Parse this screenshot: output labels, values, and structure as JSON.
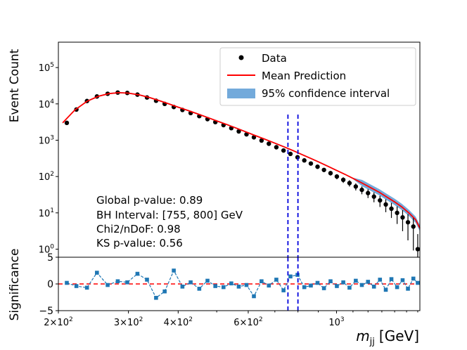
{
  "chart_data": [
    {
      "type": "scatter",
      "panel": "main",
      "ylabel": "Event Count",
      "xscale": "log",
      "yscale": "log",
      "xlim": [
        200,
        1620
      ],
      "ylim": [
        0.6,
        500000
      ],
      "legend_placement": "top-right",
      "legend": [
        "Data",
        "Mean Prediction",
        "95% confidence interval"
      ],
      "y_tick_labels": [
        {
          "value": 1,
          "base": "10",
          "exp": "0"
        },
        {
          "value": 10,
          "base": "10",
          "exp": "1"
        },
        {
          "value": 100,
          "base": "10",
          "exp": "2"
        },
        {
          "value": 1000,
          "base": "10",
          "exp": "3"
        },
        {
          "value": 10000,
          "base": "10",
          "exp": "4"
        },
        {
          "value": 100000,
          "base": "10",
          "exp": "5"
        }
      ],
      "annotations": [
        "Global p-value: 0.89",
        "BH Interval: [755, 800] GeV",
        "Chi2/nDoF: 0.98",
        "KS p-value: 0.56"
      ],
      "interval_lines": [
        755,
        800
      ],
      "series": [
        {
          "name": "Data",
          "marker": "dot",
          "points": [
            [
              210,
              3000
            ],
            [
              222,
              7000
            ],
            [
              236,
              12000
            ],
            [
              250,
              16000
            ],
            [
              266,
              19000
            ],
            [
              282,
              20500
            ],
            [
              298,
              20000
            ],
            [
              316,
              18000
            ],
            [
              334,
              15000
            ],
            [
              352,
              12200
            ],
            [
              370,
              10000
            ],
            [
              390,
              8200
            ],
            [
              410,
              6800
            ],
            [
              430,
              5600
            ],
            [
              452,
              4600
            ],
            [
              474,
              3800
            ],
            [
              496,
              3150
            ],
            [
              520,
              2600
            ],
            [
              544,
              2150
            ],
            [
              568,
              1750
            ],
            [
              594,
              1450
            ],
            [
              620,
              1200
            ],
            [
              648,
              980
            ],
            [
              676,
              800
            ],
            [
              706,
              640
            ],
            [
              736,
              520
            ],
            [
              766,
              420
            ],
            [
              798,
              340
            ],
            [
              830,
              278
            ],
            [
              862,
              228
            ],
            [
              896,
              186
            ],
            [
              930,
              152
            ],
            [
              966,
              124
            ],
            [
              1002,
              100
            ],
            [
              1040,
              81
            ],
            [
              1078,
              66
            ],
            [
              1118,
              53
            ],
            [
              1158,
              43
            ],
            [
              1200,
              35
            ],
            [
              1242,
              28
            ],
            [
              1286,
              22
            ],
            [
              1330,
              17
            ],
            [
              1374,
              13
            ],
            [
              1420,
              10
            ],
            [
              1466,
              7.5
            ],
            [
              1512,
              5.5
            ],
            [
              1560,
              4.2
            ],
            [
              1600,
              1
            ]
          ]
        },
        {
          "name": "Mean Prediction",
          "color": "#ff0000",
          "points": [
            [
              205,
              3000
            ],
            [
              220,
              6800
            ],
            [
              236,
              11800
            ],
            [
              252,
              16200
            ],
            [
              268,
              19200
            ],
            [
              284,
              20300
            ],
            [
              300,
              19800
            ],
            [
              320,
              17600
            ],
            [
              340,
              14800
            ],
            [
              360,
              12100
            ],
            [
              380,
              9900
            ],
            [
              400,
              8100
            ],
            [
              425,
              6500
            ],
            [
              450,
              5200
            ],
            [
              475,
              4200
            ],
            [
              500,
              3400
            ],
            [
              530,
              2700
            ],
            [
              560,
              2150
            ],
            [
              590,
              1720
            ],
            [
              620,
              1390
            ],
            [
              660,
              1070
            ],
            [
              700,
              830
            ],
            [
              740,
              650
            ],
            [
              780,
              510
            ],
            [
              820,
              400
            ],
            [
              860,
              318
            ],
            [
              900,
              254
            ],
            [
              950,
              193
            ],
            [
              1000,
              148
            ],
            [
              1050,
              115
            ],
            [
              1100,
              89
            ],
            [
              1160,
              66
            ],
            [
              1220,
              49
            ],
            [
              1280,
              37
            ],
            [
              1340,
              27
            ],
            [
              1400,
              20
            ],
            [
              1460,
              14.5
            ],
            [
              1520,
              10
            ],
            [
              1580,
              6.5
            ],
            [
              1620,
              3.8
            ]
          ]
        }
      ],
      "band_color": "#5b9bd5"
    },
    {
      "type": "scatter",
      "panel": "residual",
      "xlabel": "m_jj [GeV]",
      "xlabel_main": "m",
      "xlabel_sub": "jj",
      "xlabel_unit": "[GeV]",
      "ylabel": "Significance",
      "xscale": "log",
      "xlim": [
        200,
        1620
      ],
      "ylim": [
        -5,
        5
      ],
      "y_ticks": [
        {
          "value": 5,
          "label": "5"
        },
        {
          "value": 0,
          "label": "0"
        },
        {
          "value": -5,
          "label": "−5"
        }
      ],
      "x_tick_labels": [
        {
          "value": 200,
          "mant": "2×10",
          "exp": "2"
        },
        {
          "value": 300,
          "mant": "3×10",
          "exp": "2"
        },
        {
          "value": 400,
          "mant": "4×10",
          "exp": "2"
        },
        {
          "value": 600,
          "mant": "6×10",
          "exp": "2"
        },
        {
          "value": 1000,
          "mant": "10",
          "exp": "3"
        }
      ],
      "series": [
        {
          "name": "Significance",
          "color": "#1f77b4",
          "points": [
            [
              210,
              0.2
            ],
            [
              222,
              -0.4
            ],
            [
              236,
              -0.7
            ],
            [
              250,
              2.1
            ],
            [
              266,
              -0.2
            ],
            [
              282,
              0.5
            ],
            [
              298,
              0.3
            ],
            [
              316,
              1.9
            ],
            [
              334,
              0.8
            ],
            [
              352,
              -2.6
            ],
            [
              370,
              -1.4
            ],
            [
              390,
              2.5
            ],
            [
              410,
              -0.5
            ],
            [
              430,
              0.3
            ],
            [
              452,
              -0.9
            ],
            [
              474,
              0.6
            ],
            [
              496,
              -0.4
            ],
            [
              520,
              -0.6
            ],
            [
              544,
              0.1
            ],
            [
              568,
              -0.5
            ],
            [
              594,
              -0.2
            ],
            [
              620,
              -2.3
            ],
            [
              648,
              0.5
            ],
            [
              676,
              -0.3
            ],
            [
              706,
              0.8
            ],
            [
              736,
              -1.2
            ],
            [
              766,
              1.4
            ],
            [
              798,
              1.7
            ],
            [
              830,
              -0.6
            ],
            [
              862,
              -0.3
            ],
            [
              896,
              0.2
            ],
            [
              930,
              -0.8
            ],
            [
              966,
              0.5
            ],
            [
              1002,
              -0.4
            ],
            [
              1040,
              0.3
            ],
            [
              1078,
              -0.7
            ],
            [
              1118,
              0.6
            ],
            [
              1158,
              -0.2
            ],
            [
              1200,
              0.4
            ],
            [
              1242,
              -0.5
            ],
            [
              1286,
              0.8
            ],
            [
              1330,
              -1.1
            ],
            [
              1374,
              0.9
            ],
            [
              1420,
              -0.6
            ],
            [
              1466,
              0.7
            ],
            [
              1512,
              -0.9
            ],
            [
              1560,
              1.0
            ],
            [
              1600,
              0.2
            ]
          ]
        }
      ],
      "zero_line_color": "#ff0000"
    }
  ]
}
